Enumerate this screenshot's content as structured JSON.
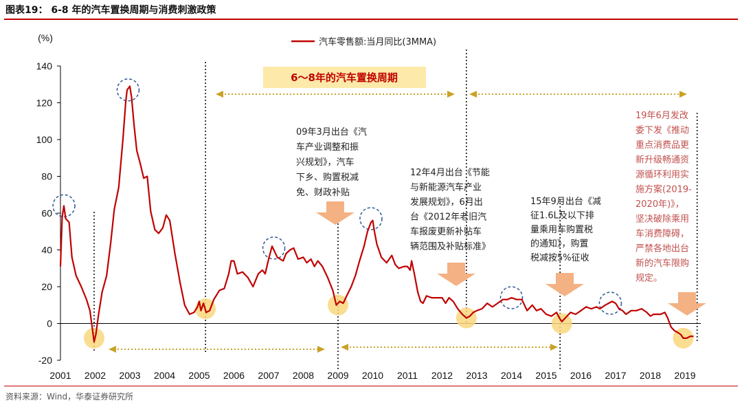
{
  "header": {
    "title": "图表19： 6-8 年的汽车置换周期与消费刺激政策"
  },
  "footer": {
    "source": "资料来源：Wind，华泰证券研究所"
  },
  "banner": "6～8年的汽车置换周期",
  "annotations": [
    {
      "id": "a2009",
      "lines": [
        "09年3月出台《汽",
        "车产业调整和振",
        "兴规划》，汽车",
        "下乡、购置税减",
        "免、财政补贴"
      ]
    },
    {
      "id": "a2012",
      "lines": [
        "12年4月出台《节能",
        "与新能源汽车产业",
        "发展规划》，6月出",
        "台《2012年老旧汽",
        "车报废更新补贴车",
        "辆范围及补贴标准》"
      ]
    },
    {
      "id": "a2015",
      "lines": [
        "15年9月出台《减",
        "征1.6L及以下排",
        "量乘用车购置税",
        "的通知》，购置",
        "税减按5%征收"
      ]
    },
    {
      "id": "a2019",
      "lines": [
        "19年6月发改",
        "委下发《推动",
        "重点消费品更",
        "新升级畅通资",
        "源循环利用实",
        "施方案(2019-",
        "2020年)》，",
        "坚决破除乘用",
        "车消费障碍，",
        "严禁各地出台",
        "新的汽车限购",
        "规定。"
      ]
    }
  ],
  "colors": {
    "line": "#c00000",
    "accent": "#c00000",
    "banner_bg": "#fde9a9",
    "arrow": "#f4b183",
    "trough_marker": "#f9d77e",
    "peak_marker": "#2f5597",
    "cycle_arrow": "#c9a227",
    "policy_text_2019": "#c0504d"
  },
  "chart_data": {
    "type": "line",
    "ylabel": "(%)",
    "ylim": [
      -20,
      140
    ],
    "yticks": [
      -20,
      0,
      20,
      40,
      60,
      80,
      100,
      120,
      140
    ],
    "xlim": [
      2001,
      2019.8
    ],
    "xticks": [
      2001,
      2002,
      2003,
      2004,
      2005,
      2006,
      2007,
      2008,
      2009,
      2010,
      2011,
      2012,
      2013,
      2014,
      2015,
      2016,
      2017,
      2018,
      2019
    ],
    "grid": false,
    "legend_position": "top-center",
    "series": [
      {
        "name": "汽车零售额:当月同比(3MMA)",
        "points": [
          [
            2001.0,
            31
          ],
          [
            2001.05,
            58
          ],
          [
            2001.1,
            64
          ],
          [
            2001.15,
            57
          ],
          [
            2001.25,
            55
          ],
          [
            2001.33,
            36
          ],
          [
            2001.45,
            26
          ],
          [
            2001.6,
            20
          ],
          [
            2001.75,
            13
          ],
          [
            2001.85,
            7
          ],
          [
            2001.92,
            -3
          ],
          [
            2001.97,
            -10
          ],
          [
            2002.02,
            -6
          ],
          [
            2002.1,
            5
          ],
          [
            2002.2,
            17
          ],
          [
            2002.33,
            26
          ],
          [
            2002.45,
            44
          ],
          [
            2002.55,
            62
          ],
          [
            2002.68,
            74
          ],
          [
            2002.8,
            100
          ],
          [
            2002.88,
            120
          ],
          [
            2002.92,
            127
          ],
          [
            2003.0,
            129
          ],
          [
            2003.05,
            123
          ],
          [
            2003.12,
            108
          ],
          [
            2003.2,
            94
          ],
          [
            2003.3,
            87
          ],
          [
            2003.4,
            79
          ],
          [
            2003.5,
            80
          ],
          [
            2003.6,
            61
          ],
          [
            2003.72,
            51
          ],
          [
            2003.83,
            49
          ],
          [
            2003.95,
            52
          ],
          [
            2004.05,
            59
          ],
          [
            2004.15,
            56
          ],
          [
            2004.3,
            38
          ],
          [
            2004.45,
            22
          ],
          [
            2004.58,
            10
          ],
          [
            2004.72,
            5
          ],
          [
            2004.85,
            6
          ],
          [
            2004.95,
            9
          ],
          [
            2005.0,
            12
          ],
          [
            2005.05,
            7
          ],
          [
            2005.12,
            11
          ],
          [
            2005.2,
            6
          ],
          [
            2005.3,
            7
          ],
          [
            2005.42,
            13
          ],
          [
            2005.58,
            18
          ],
          [
            2005.72,
            19
          ],
          [
            2005.85,
            27
          ],
          [
            2005.92,
            34
          ],
          [
            2006.0,
            34
          ],
          [
            2006.1,
            27
          ],
          [
            2006.25,
            28
          ],
          [
            2006.4,
            25
          ],
          [
            2006.55,
            20
          ],
          [
            2006.7,
            27
          ],
          [
            2006.82,
            29
          ],
          [
            2006.9,
            27
          ],
          [
            2007.0,
            35
          ],
          [
            2007.1,
            42
          ],
          [
            2007.25,
            36
          ],
          [
            2007.42,
            34
          ],
          [
            2007.5,
            38
          ],
          [
            2007.62,
            40
          ],
          [
            2007.72,
            41
          ],
          [
            2007.85,
            35
          ],
          [
            2008.0,
            36
          ],
          [
            2008.1,
            33
          ],
          [
            2008.22,
            35
          ],
          [
            2008.32,
            31
          ],
          [
            2008.42,
            34
          ],
          [
            2008.55,
            31
          ],
          [
            2008.7,
            25
          ],
          [
            2008.85,
            18
          ],
          [
            2008.95,
            10
          ],
          [
            2009.05,
            12
          ],
          [
            2009.15,
            11
          ],
          [
            2009.25,
            15
          ],
          [
            2009.38,
            20
          ],
          [
            2009.5,
            26
          ],
          [
            2009.62,
            34
          ],
          [
            2009.75,
            42
          ],
          [
            2009.85,
            50
          ],
          [
            2009.95,
            55
          ],
          [
            2010.0,
            56
          ],
          [
            2010.05,
            50
          ],
          [
            2010.12,
            43
          ],
          [
            2010.25,
            36
          ],
          [
            2010.4,
            33
          ],
          [
            2010.55,
            37
          ],
          [
            2010.65,
            32
          ],
          [
            2010.75,
            30
          ],
          [
            2010.9,
            31
          ],
          [
            2011.0,
            31
          ],
          [
            2011.08,
            29
          ],
          [
            2011.12,
            34
          ],
          [
            2011.2,
            27
          ],
          [
            2011.3,
            17
          ],
          [
            2011.38,
            12
          ],
          [
            2011.45,
            11
          ],
          [
            2011.55,
            15
          ],
          [
            2011.7,
            14
          ],
          [
            2011.85,
            14
          ],
          [
            2012.0,
            14
          ],
          [
            2012.1,
            11
          ],
          [
            2012.2,
            14
          ],
          [
            2012.32,
            12
          ],
          [
            2012.45,
            8
          ],
          [
            2012.58,
            5
          ],
          [
            2012.7,
            3
          ],
          [
            2012.8,
            4
          ],
          [
            2012.9,
            6
          ],
          [
            2013.0,
            7
          ],
          [
            2013.15,
            8
          ],
          [
            2013.3,
            11
          ],
          [
            2013.45,
            9
          ],
          [
            2013.6,
            11
          ],
          [
            2013.75,
            13
          ],
          [
            2013.88,
            13
          ],
          [
            2014.0,
            14
          ],
          [
            2014.15,
            13
          ],
          [
            2014.3,
            13
          ],
          [
            2014.45,
            7
          ],
          [
            2014.6,
            10
          ],
          [
            2014.72,
            7
          ],
          [
            2014.85,
            8
          ],
          [
            2015.0,
            5
          ],
          [
            2015.15,
            4
          ],
          [
            2015.3,
            6
          ],
          [
            2015.38,
            3
          ],
          [
            2015.45,
            1
          ],
          [
            2015.55,
            3
          ],
          [
            2015.7,
            6
          ],
          [
            2015.85,
            5
          ],
          [
            2016.0,
            7
          ],
          [
            2016.15,
            9
          ],
          [
            2016.3,
            8
          ],
          [
            2016.45,
            9
          ],
          [
            2016.55,
            8
          ],
          [
            2016.7,
            10
          ],
          [
            2016.8,
            11
          ],
          [
            2016.9,
            12
          ],
          [
            2017.0,
            11
          ],
          [
            2017.1,
            8
          ],
          [
            2017.2,
            7
          ],
          [
            2017.3,
            5
          ],
          [
            2017.45,
            7
          ],
          [
            2017.6,
            7
          ],
          [
            2017.75,
            8
          ],
          [
            2017.9,
            6
          ],
          [
            2018.0,
            4
          ],
          [
            2018.1,
            5
          ],
          [
            2018.2,
            5
          ],
          [
            2018.3,
            5
          ],
          [
            2018.42,
            6
          ],
          [
            2018.5,
            3
          ],
          [
            2018.6,
            -2
          ],
          [
            2018.7,
            -4
          ],
          [
            2018.8,
            -5
          ],
          [
            2018.88,
            -6
          ],
          [
            2018.95,
            -8
          ],
          [
            2019.05,
            -8
          ],
          [
            2019.15,
            -7
          ],
          [
            2019.25,
            -7
          ]
        ]
      }
    ]
  }
}
